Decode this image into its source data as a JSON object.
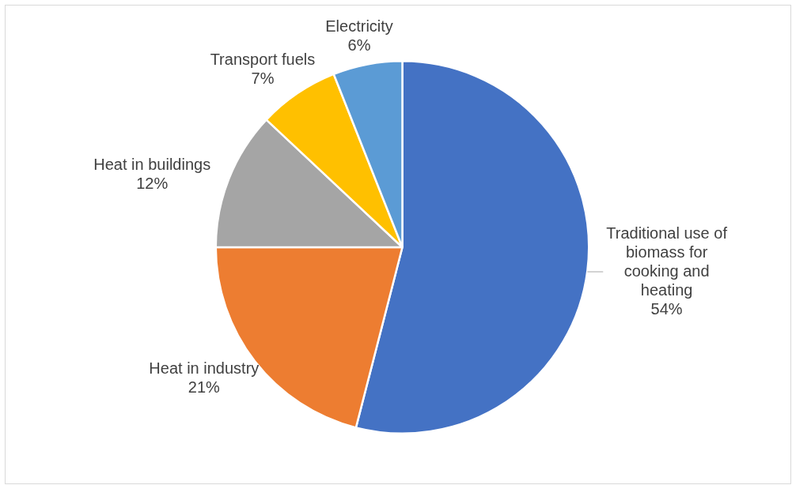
{
  "chart_data": {
    "type": "pie",
    "categories": [
      "Traditional use of biomass for cooking and heating",
      "Heat in industry",
      "Heat in buildings",
      "Transport fuels",
      "Electricity"
    ],
    "values": [
      54,
      21,
      12,
      7,
      6
    ],
    "colors": [
      "#4472c4",
      "#ed7d31",
      "#a5a5a5",
      "#ffc000",
      "#5b9bd5"
    ],
    "value_labels": [
      "54%",
      "21%",
      "12%",
      "7%",
      "6%"
    ],
    "legend": false
  }
}
